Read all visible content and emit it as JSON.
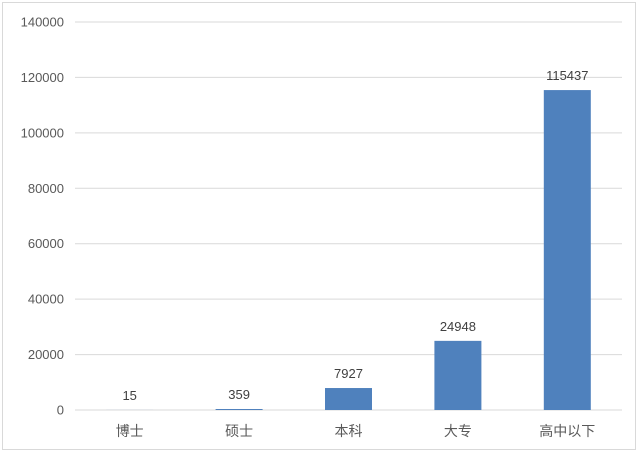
{
  "chart_data": {
    "type": "bar",
    "title": "",
    "xlabel": "",
    "ylabel": "",
    "categories": [
      "博士",
      "硕士",
      "本科",
      "大专",
      "高中以下"
    ],
    "values": [
      15,
      359,
      7927,
      24948,
      115437
    ],
    "data_labels": [
      "15",
      "359",
      "7927",
      "24948",
      "115437"
    ],
    "ylim": [
      0,
      140000
    ],
    "yticks": [
      0,
      20000,
      40000,
      60000,
      80000,
      100000,
      120000,
      140000
    ],
    "ytick_labels": [
      "0",
      "20000",
      "40000",
      "60000",
      "80000",
      "100000",
      "120000",
      "140000"
    ],
    "grid": true,
    "legend": "none",
    "bar_color": "#4f81bd",
    "grid_color": "#d9d9d9"
  }
}
